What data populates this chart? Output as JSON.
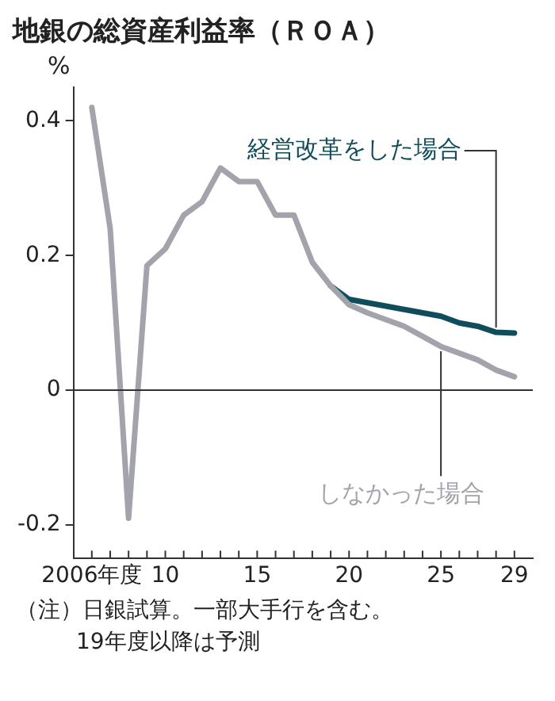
{
  "chart_data": {
    "type": "line",
    "title": "地銀の総資産利益率（ＲＯＡ）",
    "ylabel": "%",
    "x": [
      2006,
      2007,
      2008,
      2009,
      2010,
      2011,
      2012,
      2013,
      2014,
      2015,
      2016,
      2017,
      2018,
      2019,
      2020,
      2021,
      2022,
      2023,
      2024,
      2025,
      2026,
      2027,
      2028,
      2029
    ],
    "series": [
      {
        "name": "しなかった場合",
        "color": "#a3a3ab",
        "values": [
          0.42,
          0.24,
          -0.19,
          0.185,
          0.21,
          0.26,
          0.28,
          0.33,
          0.31,
          0.31,
          0.26,
          0.26,
          0.19,
          0.155,
          0.127,
          0.115,
          0.105,
          0.095,
          0.08,
          0.065,
          0.055,
          0.045,
          0.03,
          0.02
        ]
      },
      {
        "name": "経営改革をした場合",
        "color": "#0f4c5c",
        "values": [
          null,
          null,
          null,
          null,
          null,
          null,
          null,
          null,
          null,
          null,
          null,
          null,
          null,
          0.155,
          0.135,
          0.13,
          0.125,
          0.12,
          0.115,
          0.11,
          0.1,
          0.095,
          0.086,
          0.085
        ]
      }
    ],
    "xlim": [
      2005,
      2030
    ],
    "xticks": [
      {
        "value": 2006,
        "label": "2006年度"
      },
      {
        "value": 2007,
        "label": null
      },
      {
        "value": 2008,
        "label": null
      },
      {
        "value": 2009,
        "label": null
      },
      {
        "value": 2010,
        "label": "10"
      },
      {
        "value": 2011,
        "label": null
      },
      {
        "value": 2012,
        "label": null
      },
      {
        "value": 2013,
        "label": null
      },
      {
        "value": 2014,
        "label": null
      },
      {
        "value": 2015,
        "label": "15"
      },
      {
        "value": 2016,
        "label": null
      },
      {
        "value": 2017,
        "label": null
      },
      {
        "value": 2018,
        "label": null
      },
      {
        "value": 2019,
        "label": null
      },
      {
        "value": 2020,
        "label": "20"
      },
      {
        "value": 2021,
        "label": null
      },
      {
        "value": 2022,
        "label": null
      },
      {
        "value": 2023,
        "label": null
      },
      {
        "value": 2024,
        "label": null
      },
      {
        "value": 2025,
        "label": "25"
      },
      {
        "value": 2026,
        "label": null
      },
      {
        "value": 2027,
        "label": null
      },
      {
        "value": 2028,
        "label": null
      },
      {
        "value": 2029,
        "label": "29"
      }
    ],
    "ylim": [
      -0.25,
      0.45
    ],
    "yticks": [
      -0.2,
      0,
      0.2,
      0.4
    ],
    "ref_lines": [
      {
        "axis": "y",
        "value": 0,
        "color": "#333333"
      }
    ],
    "grid": false,
    "legend": false,
    "marker": "none",
    "line_style": "solid",
    "annotations": [
      "（注）日銀試算。一部大手行を含む。\n19年度以降は予測"
    ]
  }
}
